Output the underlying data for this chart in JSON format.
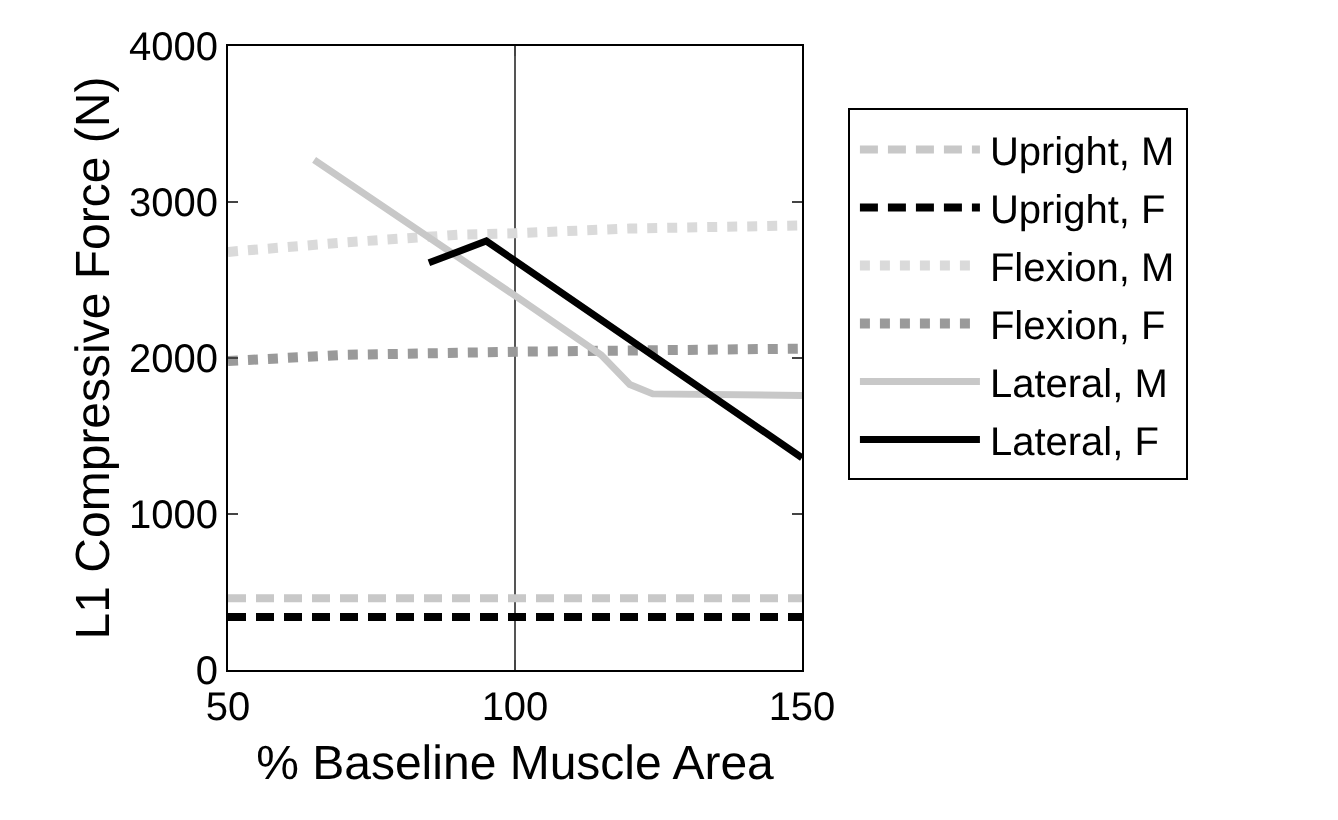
{
  "chart_data": {
    "type": "line",
    "xlabel": "% Baseline Muscle Area",
    "ylabel": "L1 Compressive Force (N)",
    "xlim": [
      50,
      150
    ],
    "xticks": [
      50,
      100,
      150
    ],
    "ylim": [
      0,
      4000
    ],
    "yticks": [
      0,
      1000,
      2000,
      3000,
      4000
    ],
    "legend": "right",
    "grid": false,
    "marker": "none",
    "ref_lines": [
      {
        "axis": "x",
        "value": 100,
        "color": "#555555",
        "line_style": "solid"
      }
    ],
    "series": [
      {
        "name": "Upright, M",
        "color": "#c8c8c8",
        "line_style": "dashed",
        "x": [
          50,
          150
        ],
        "values": [
          460,
          460
        ]
      },
      {
        "name": "Upright, F",
        "color": "#000000",
        "line_style": "dashed",
        "x": [
          50,
          150
        ],
        "values": [
          340,
          340
        ]
      },
      {
        "name": "Flexion, M",
        "color": "#dadada",
        "line_style": "dotted",
        "x": [
          50,
          70,
          90,
          100,
          120,
          150
        ],
        "values": [
          2680,
          2740,
          2790,
          2800,
          2830,
          2850
        ]
      },
      {
        "name": "Flexion, F",
        "color": "#9a9a9a",
        "line_style": "dotted",
        "x": [
          50,
          70,
          100,
          150
        ],
        "values": [
          1980,
          2020,
          2040,
          2060
        ]
      },
      {
        "name": "Lateral, M",
        "color": "#c8c8c8",
        "line_style": "solid",
        "x": [
          65,
          100,
          115,
          120,
          124,
          150
        ],
        "values": [
          3270,
          2400,
          2020,
          1830,
          1770,
          1760
        ]
      },
      {
        "name": "Lateral, F",
        "color": "#000000",
        "line_style": "solid",
        "x": [
          85,
          95,
          150
        ],
        "values": [
          2610,
          2750,
          1360
        ]
      }
    ]
  }
}
